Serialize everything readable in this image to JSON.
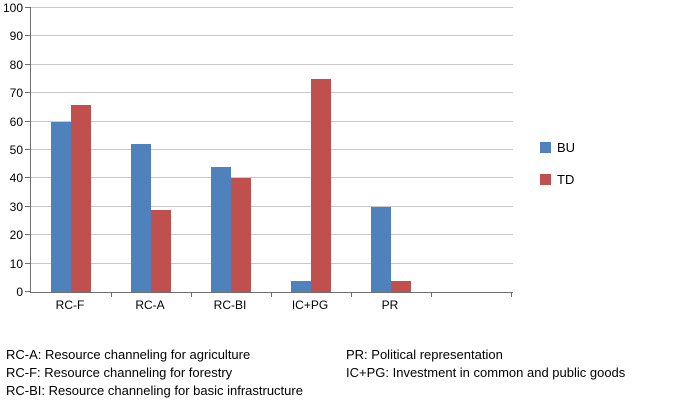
{
  "chart_data": {
    "type": "bar",
    "categories": [
      "RC-F",
      "RC-A",
      "RC-BI",
      "IC+PG",
      "PR"
    ],
    "series": [
      {
        "name": "BU",
        "color": "#4F81BD",
        "values": [
          60,
          52,
          44,
          4,
          30
        ]
      },
      {
        "name": "TD",
        "color": "#C0504D",
        "values": [
          66,
          29,
          40,
          75,
          4
        ]
      }
    ],
    "title": "",
    "xlabel": "",
    "ylabel": "",
    "ylim": [
      0,
      100
    ],
    "ytick_step": 10,
    "grid": true,
    "legend_position": "right"
  },
  "legend": {
    "items": [
      {
        "label": "BU",
        "color": "#4F81BD"
      },
      {
        "label": "TD",
        "color": "#C0504D"
      }
    ]
  },
  "footnotes": {
    "left": [
      "RC-A: Resource channeling for agriculture",
      "RC-F: Resource channeling for forestry",
      "RC-BI: Resource channeling for basic infrastructure"
    ],
    "right": [
      "PR: Political representation",
      "IC+PG: Investment in common and public goods"
    ]
  }
}
